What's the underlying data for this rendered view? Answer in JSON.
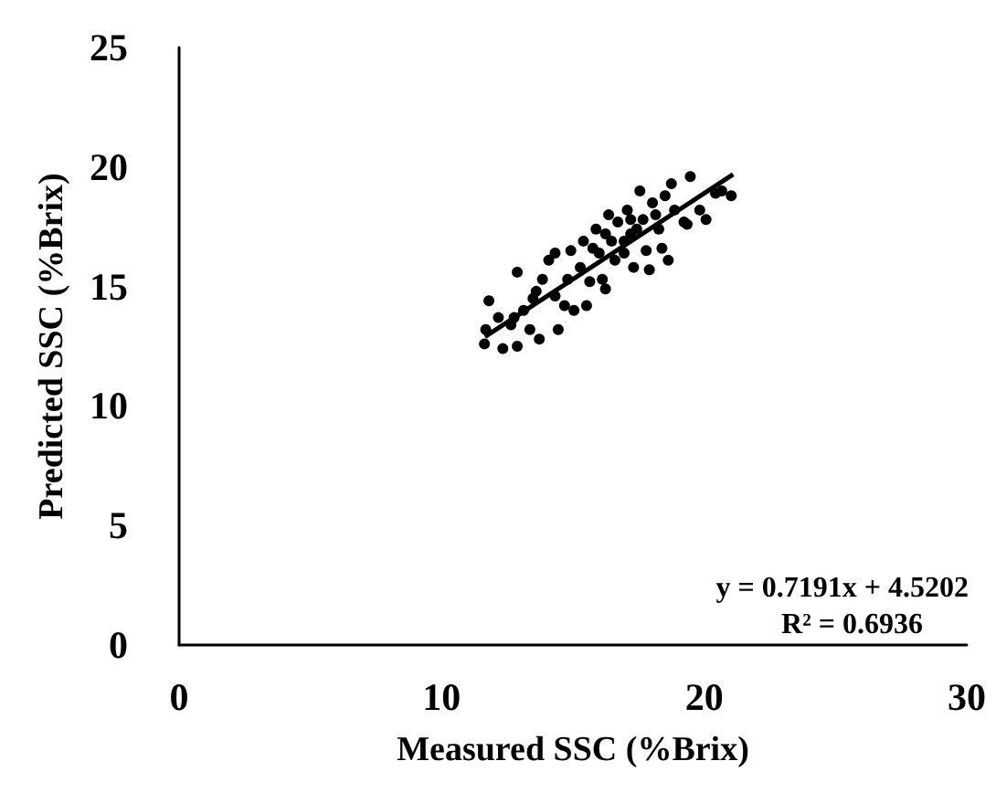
{
  "chart_data": {
    "type": "scatter",
    "xlabel": "Measured SSC (%Brix)",
    "ylabel": "Predicted SSC (%Brix)",
    "xlim": [
      0,
      30
    ],
    "xticks": [
      0,
      10,
      20,
      30
    ],
    "ylim": [
      0,
      25
    ],
    "yticks": [
      0,
      5,
      10,
      15,
      20,
      25
    ],
    "grid": false,
    "marker": "circle",
    "annotations": [
      "y = 0.7191x + 4.5202",
      "R² = 0.6936"
    ],
    "series": [
      {
        "color": "#000000",
        "x": [
          11.63,
          11.8,
          11.68,
          12.33,
          12.88,
          12.88,
          12.16,
          12.64,
          13.12,
          13.48,
          13.72,
          13.36,
          13.84,
          14.08,
          14.44,
          14.32,
          14.68,
          14.8,
          14.92,
          15.04,
          15.28,
          15.4,
          15.52,
          15.64,
          15.88,
          16.0,
          16.12,
          16.24,
          16.36,
          16.47,
          16.6,
          16.71,
          16.95,
          17.07,
          17.2,
          17.31,
          17.43,
          17.55,
          17.67,
          17.79,
          17.91,
          18.03,
          18.27,
          18.39,
          18.63,
          18.75,
          18.87,
          19.23,
          19.47,
          19.35,
          19.83,
          20.43,
          21.03,
          20.67,
          16.95,
          16.24,
          15.76,
          17.2,
          18.15,
          18.51,
          14.32,
          13.6,
          12.76,
          20.07
        ],
        "values": [
          12.6,
          14.4,
          13.2,
          12.4,
          12.5,
          15.6,
          13.7,
          13.4,
          14.0,
          14.5,
          12.8,
          13.2,
          15.3,
          16.1,
          13.2,
          14.6,
          14.2,
          15.3,
          16.5,
          14.0,
          15.8,
          16.9,
          14.2,
          15.2,
          17.4,
          16.4,
          15.3,
          14.9,
          18.0,
          16.9,
          16.1,
          17.7,
          16.4,
          18.2,
          17.2,
          15.8,
          17.4,
          19.0,
          17.8,
          16.5,
          15.7,
          18.5,
          17.4,
          16.6,
          16.1,
          19.3,
          18.2,
          17.7,
          19.6,
          17.6,
          18.2,
          18.9,
          18.8,
          19.0,
          16.9,
          17.2,
          16.6,
          17.8,
          18.0,
          18.8,
          16.4,
          14.8,
          13.7,
          17.8
        ]
      },
      {
        "type": "line",
        "color": "#000000",
        "line_style": "solid",
        "marker": "none",
        "x": [
          11.65,
          21.1
        ],
        "values": [
          12.9,
          19.69
        ]
      }
    ]
  }
}
